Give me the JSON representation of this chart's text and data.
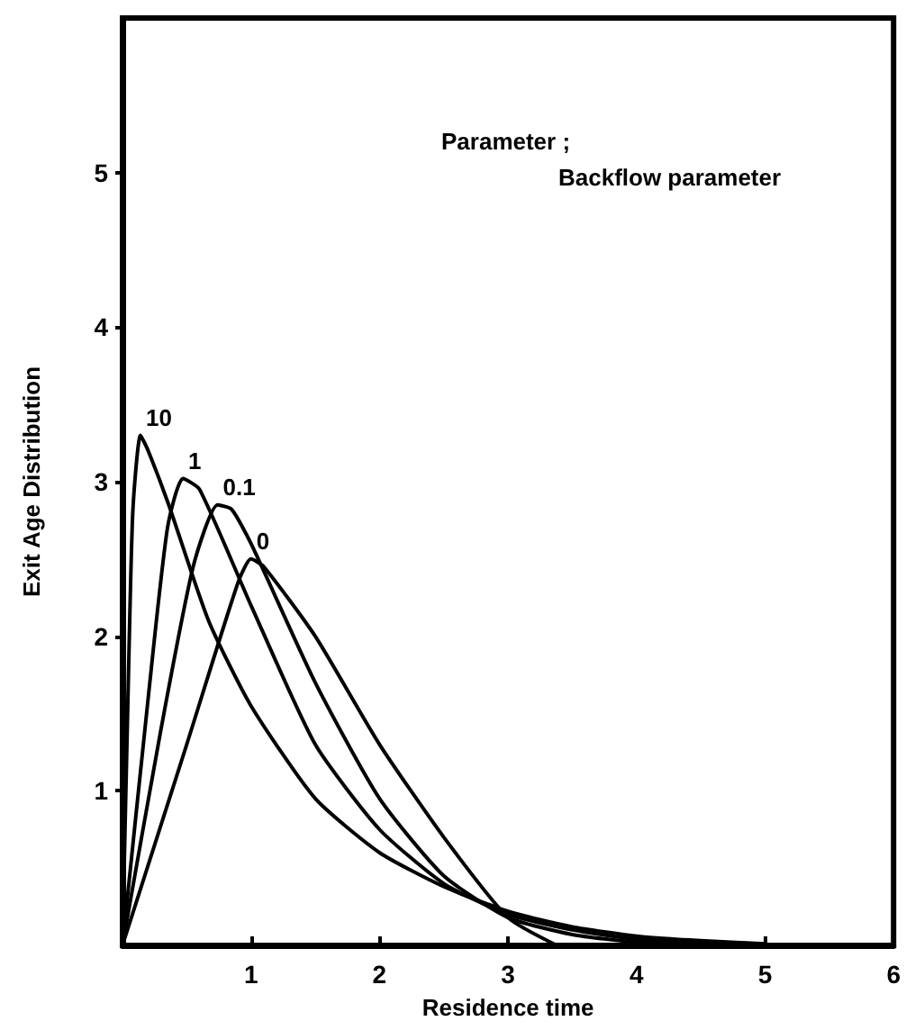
{
  "chart_data": {
    "type": "line",
    "xlabel": "Residence time",
    "ylabel": "Exit Age Distribution",
    "annotations": [
      "Parameter ;",
      "Backflow parameter"
    ],
    "xlim": [
      0,
      6
    ],
    "xticks": [
      1,
      2,
      3,
      4,
      5,
      6
    ],
    "ylim": [
      0,
      6
    ],
    "yticks": [
      1,
      2,
      3,
      4,
      5
    ],
    "grid": false,
    "legend": false,
    "marker": "none",
    "line_style": "solid",
    "series": [
      {
        "name": "10",
        "color": "#000000",
        "x": [
          0,
          0.04,
          0.08,
          0.14,
          0.2,
          0.36,
          0.67,
          1,
          1.5,
          2,
          2.5,
          3,
          3.5,
          4,
          4.5,
          5
        ],
        "values": [
          0,
          1.5,
          2.8,
          3.3,
          3.2,
          2.85,
          2.1,
          1.55,
          0.95,
          0.6,
          0.38,
          0.22,
          0.12,
          0.06,
          0.03,
          0.01
        ]
      },
      {
        "name": "1",
        "color": "#000000",
        "x": [
          0,
          0.2,
          0.35,
          0.47,
          0.6,
          1,
          1.5,
          2,
          2.5,
          3,
          3.5,
          4,
          4.5,
          5
        ],
        "values": [
          0,
          1.6,
          2.7,
          3.02,
          2.95,
          2.2,
          1.3,
          0.75,
          0.4,
          0.2,
          0.1,
          0.04,
          0.02,
          0.01
        ]
      },
      {
        "name": "0.1",
        "color": "#000000",
        "x": [
          0,
          0.3,
          0.55,
          0.74,
          0.85,
          1,
          1.5,
          2,
          2.5,
          3,
          3.5,
          4,
          4.5
        ],
        "values": [
          0,
          1.4,
          2.45,
          2.85,
          2.82,
          2.6,
          1.7,
          0.95,
          0.45,
          0.18,
          0.07,
          0.02,
          0
        ]
      },
      {
        "name": "0",
        "color": "#000000",
        "x": [
          0,
          0.5,
          0.9,
          1,
          1.1,
          1.5,
          2,
          2.5,
          3,
          3.38
        ],
        "values": [
          0,
          1.3,
          2.35,
          2.5,
          2.45,
          2.0,
          1.3,
          0.7,
          0.18,
          0
        ]
      }
    ]
  }
}
